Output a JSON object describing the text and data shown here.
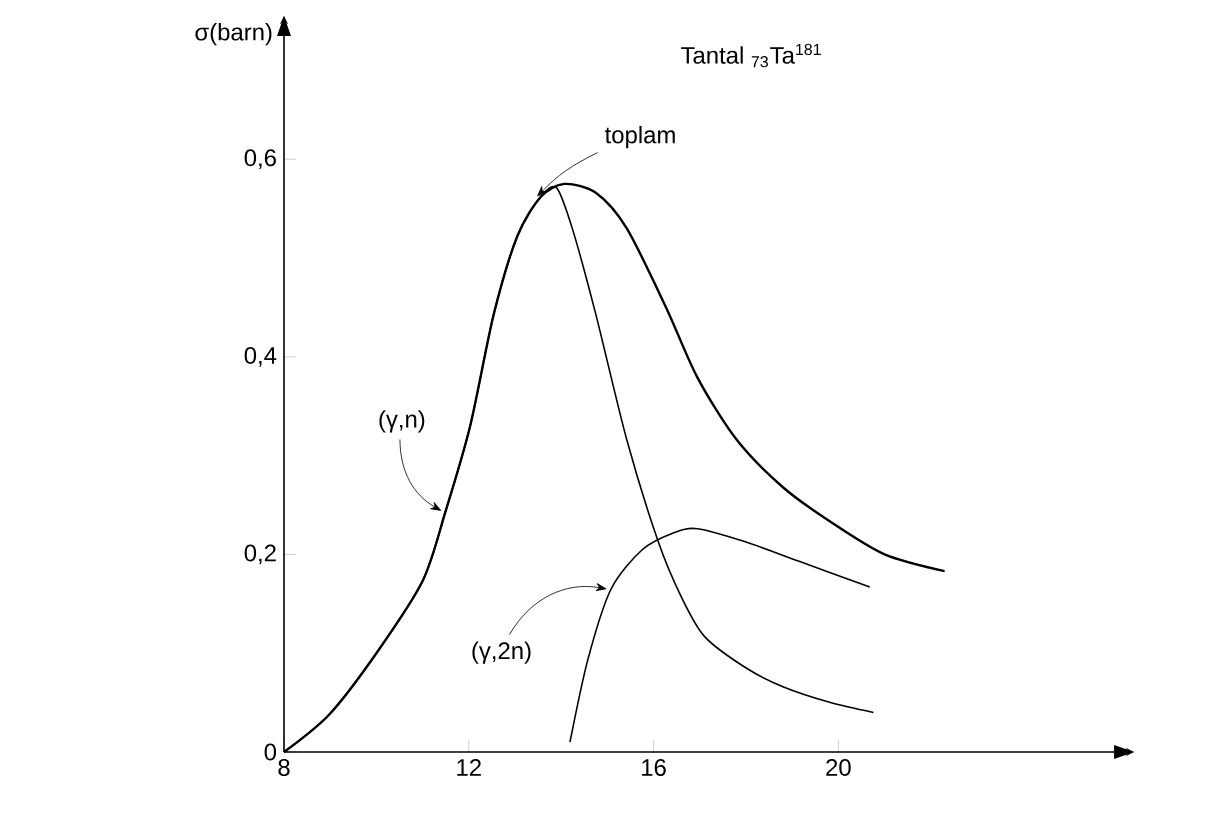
{
  "chart_data": {
    "type": "line",
    "title": "Tantal $_{73}$Ta$^{181}$",
    "ylabel": "σ(barn)",
    "xlim": [
      8,
      26.4
    ],
    "ylim": [
      0,
      0.745
    ],
    "xticks": [
      8,
      12,
      16,
      20
    ],
    "yticks": [
      0,
      {
        "value": 0.2,
        "label": "0,2"
      },
      {
        "value": 0.4,
        "label": "0,4"
      },
      {
        "value": 0.6,
        "label": "0,6"
      }
    ],
    "grid": false,
    "legend": false,
    "marker": "none",
    "line_style": "solid",
    "series": [
      {
        "name": "(γ,n)",
        "color": "#000000",
        "x": [
          8,
          8.98,
          10.0,
          11.0,
          11.5,
          12.03,
          12.54,
          13.05,
          13.56,
          13.9,
          14.24,
          14.75,
          15.42,
          16.1,
          16.6,
          17.1,
          17.97,
          18.8,
          19.83,
          20.76
        ],
        "values": [
          0,
          0.038,
          0.1,
          0.173,
          0.244,
          0.33,
          0.443,
          0.522,
          0.562,
          0.571,
          0.53,
          0.443,
          0.316,
          0.213,
          0.157,
          0.117,
          0.086,
          0.066,
          0.05,
          0.04
        ]
      },
      {
        "name": "(γ,2n)",
        "color": "#000000",
        "x": [
          14.19,
          14.58,
          15.08,
          15.76,
          16.44,
          16.95,
          17.97,
          19.15,
          20.68
        ],
        "values": [
          0.01,
          0.094,
          0.165,
          0.205,
          0.222,
          0.226,
          0.213,
          0.193,
          0.167
        ]
      },
      {
        "name": "toplam",
        "color": "#000000",
        "x": [
          8,
          8.98,
          10.0,
          11.0,
          11.5,
          12.03,
          12.54,
          13.05,
          13.56,
          14.07,
          14.75,
          15.42,
          16.27,
          16.95,
          17.8,
          18.8,
          19.83,
          21.0,
          22.3
        ],
        "values": [
          0,
          0.038,
          0.1,
          0.173,
          0.244,
          0.33,
          0.443,
          0.522,
          0.562,
          0.575,
          0.566,
          0.53,
          0.45,
          0.379,
          0.316,
          0.268,
          0.233,
          0.2,
          0.183
        ]
      }
    ]
  }
}
